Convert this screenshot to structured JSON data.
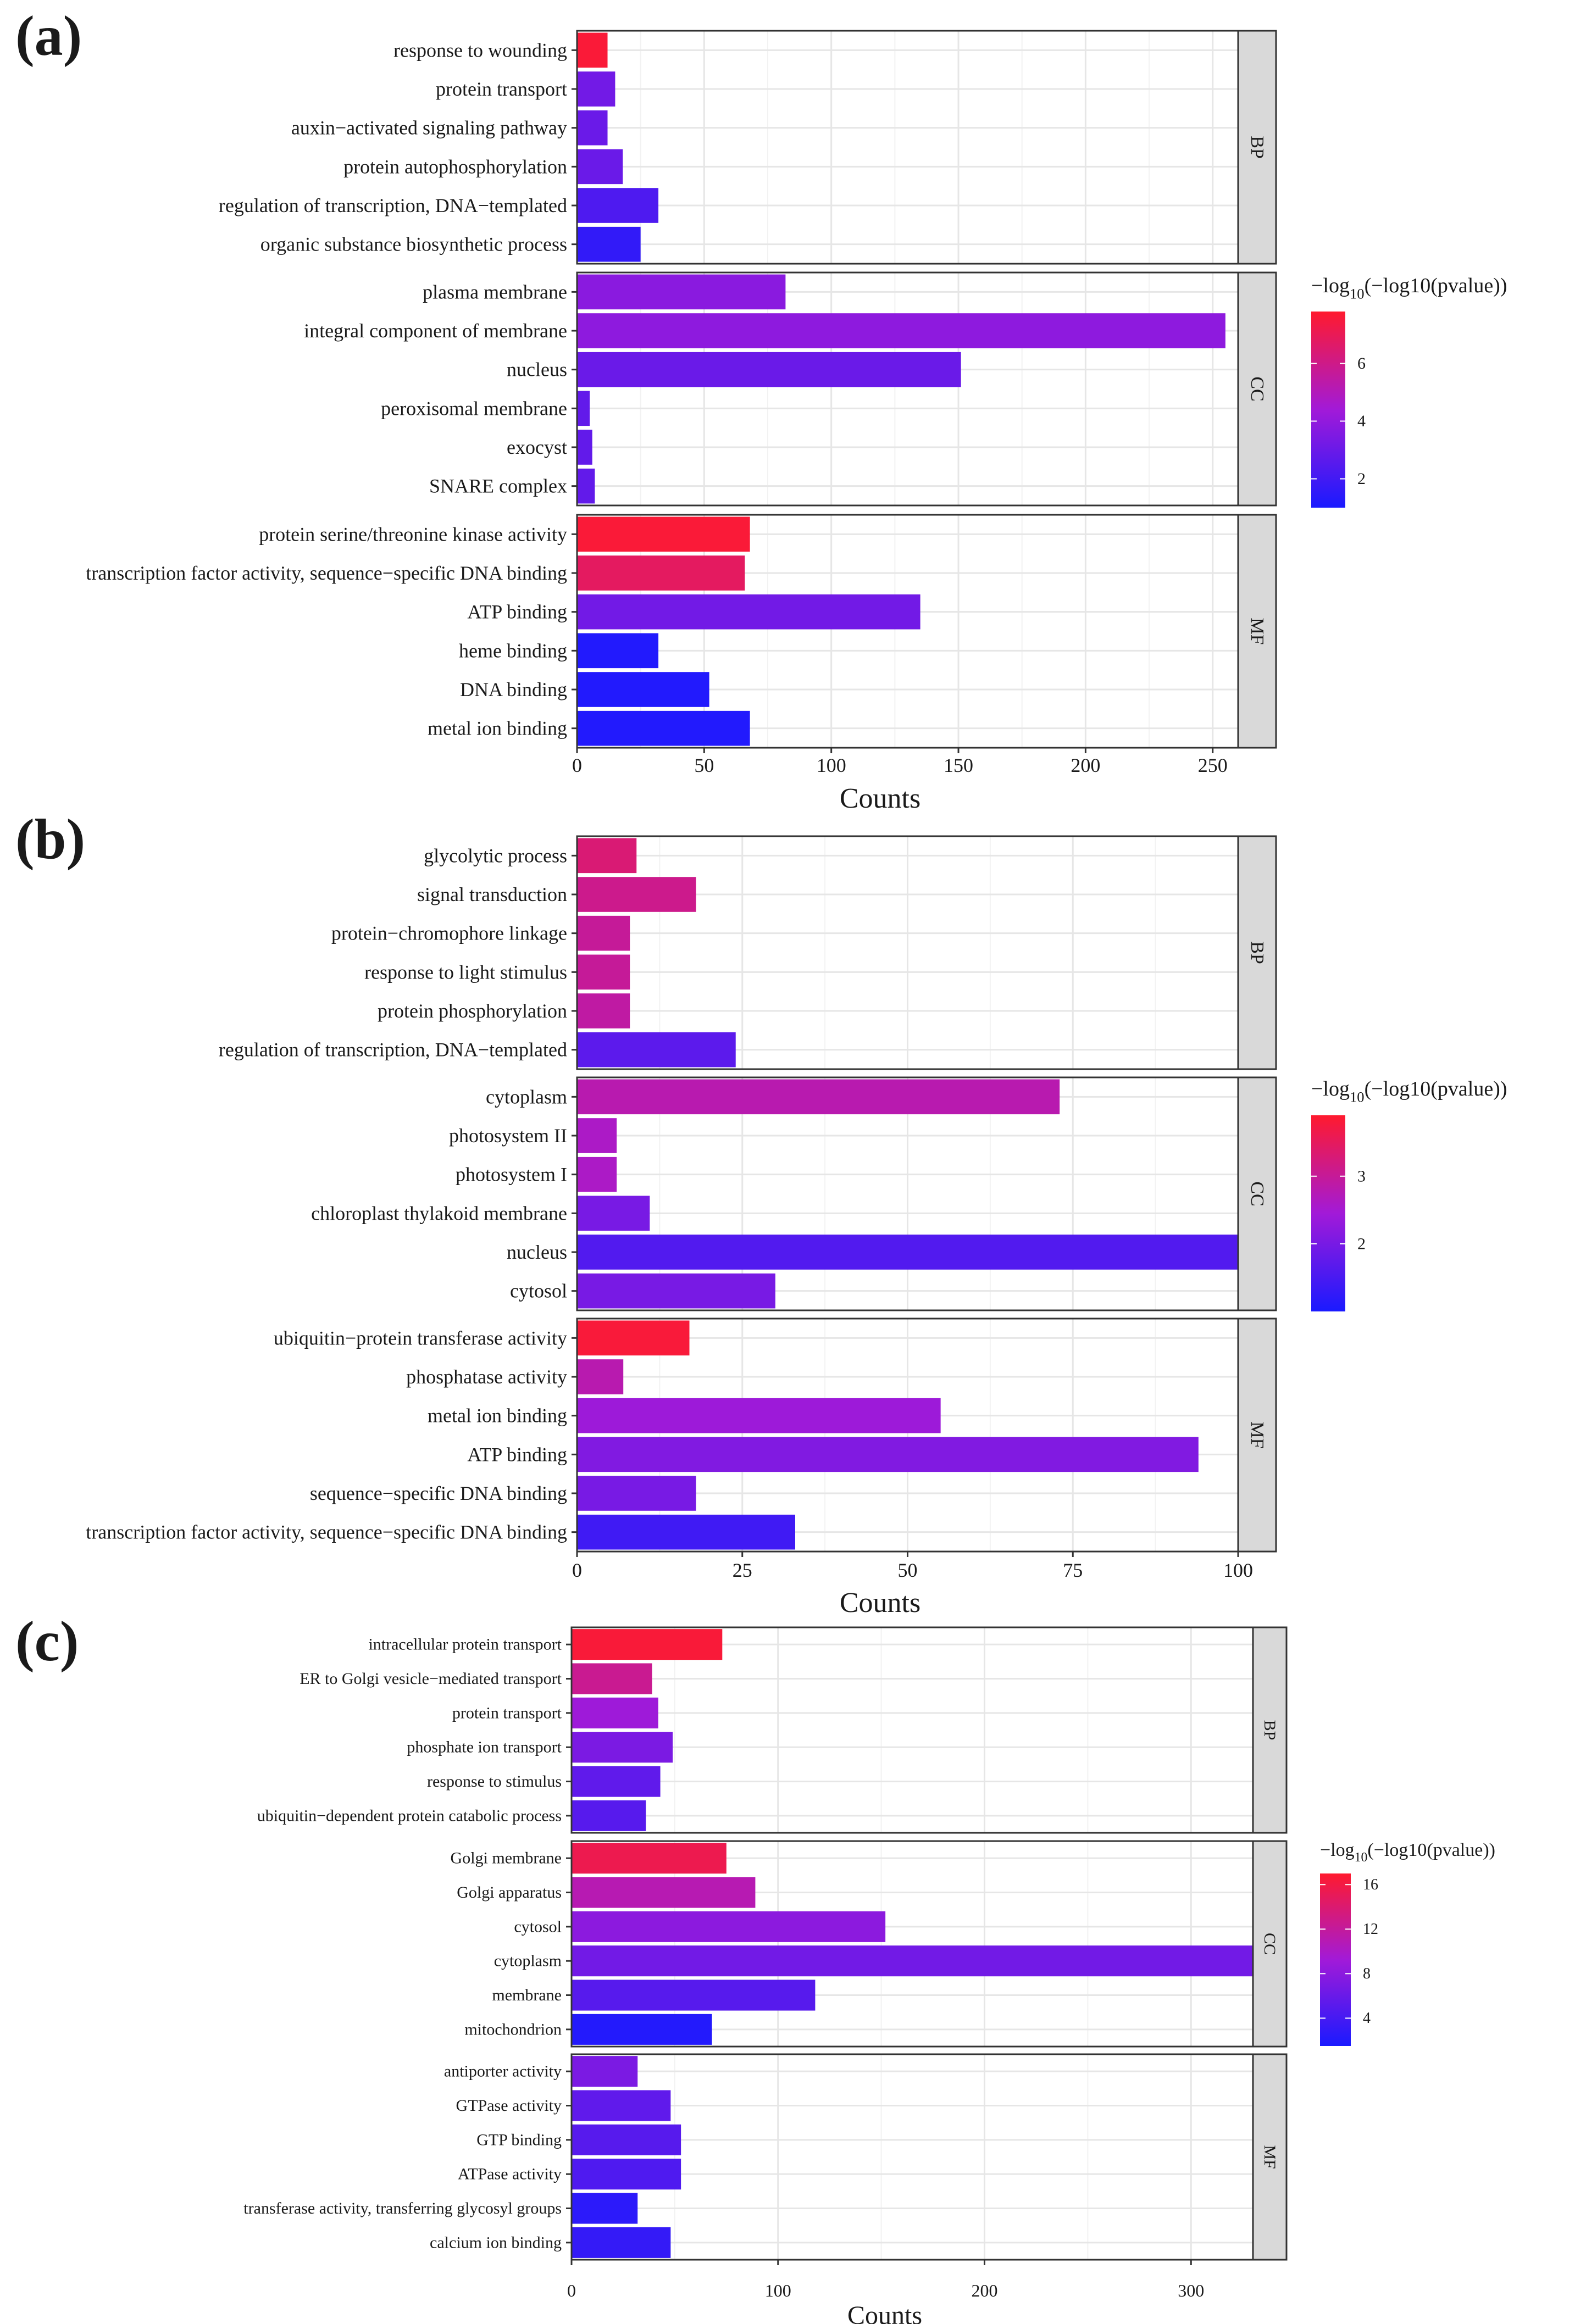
{
  "figure": {
    "axis_title": "Counts"
  },
  "chart_data": [
    {
      "panel": "(a)",
      "type": "bar",
      "orientation": "horizontal",
      "xlabel": "Counts",
      "xlim": [
        0,
        260
      ],
      "xticks": [
        0,
        50,
        100,
        150,
        200,
        250
      ],
      "grid": true,
      "legend": {
        "title_prefix": "−log",
        "title_sub": "10",
        "title_suffix": "(−log10(pvalue))",
        "range": [
          1,
          7.8
        ],
        "ticks": [
          2,
          4,
          6
        ],
        "low_color": "#1a1aff",
        "mid_color": "#a21ad8",
        "high_color": "#ff1a2e",
        "placement": "right"
      },
      "facets": [
        {
          "name": "BP",
          "terms": [
            {
              "term": "response to wounding",
              "count": 12,
              "value": 7.6
            },
            {
              "term": "protein transport",
              "count": 15,
              "value": 3.2
            },
            {
              "term": "auxin−activated signaling pathway",
              "count": 12,
              "value": 3.0
            },
            {
              "term": "protein autophosphorylation",
              "count": 18,
              "value": 3.0
            },
            {
              "term": "regulation of transcription, DNA−templated",
              "count": 32,
              "value": 2.3
            },
            {
              "term": "organic substance biosynthetic process",
              "count": 25,
              "value": 1.6
            }
          ]
        },
        {
          "name": "CC",
          "terms": [
            {
              "term": "plasma membrane",
              "count": 82,
              "value": 3.8
            },
            {
              "term": "integral component of membrane",
              "count": 255,
              "value": 3.9
            },
            {
              "term": "nucleus",
              "count": 151,
              "value": 3.0
            },
            {
              "term": "peroxisomal membrane",
              "count": 5,
              "value": 2.8
            },
            {
              "term": "exocyst",
              "count": 6,
              "value": 2.8
            },
            {
              "term": "SNARE complex",
              "count": 7,
              "value": 2.8
            }
          ]
        },
        {
          "name": "MF",
          "terms": [
            {
              "term": "protein serine/threonine kinase activity",
              "count": 68,
              "value": 7.6
            },
            {
              "term": "transcription factor activity, sequence−specific DNA binding",
              "count": 66,
              "value": 6.8
            },
            {
              "term": "ATP binding",
              "count": 135,
              "value": 3.2
            },
            {
              "term": "heme binding",
              "count": 32,
              "value": 1.2
            },
            {
              "term": "DNA binding",
              "count": 52,
              "value": 1.2
            },
            {
              "term": "metal ion binding",
              "count": 68,
              "value": 1.2
            }
          ]
        }
      ]
    },
    {
      "panel": "(b)",
      "type": "bar",
      "orientation": "horizontal",
      "xlabel": "Counts",
      "xlim": [
        0,
        100
      ],
      "xticks": [
        0,
        25,
        50,
        75,
        100
      ],
      "grid": true,
      "legend": {
        "title_prefix": "−log",
        "title_sub": "10",
        "title_suffix": "(−log10(pvalue))",
        "range": [
          1,
          3.9
        ],
        "ticks": [
          2,
          3
        ],
        "low_color": "#1a1aff",
        "mid_color": "#a21ad8",
        "high_color": "#ff1a2e",
        "placement": "right"
      },
      "facets": [
        {
          "name": "BP",
          "terms": [
            {
              "term": "glycolytic process",
              "count": 9,
              "value": 3.3
            },
            {
              "term": "signal transduction",
              "count": 18,
              "value": 3.1
            },
            {
              "term": "protein−chromophore linkage",
              "count": 8,
              "value": 3.0
            },
            {
              "term": "response to light stimulus",
              "count": 8,
              "value": 3.0
            },
            {
              "term": "protein phosphorylation",
              "count": 8,
              "value": 2.9
            },
            {
              "term": "regulation of transcription, DNA−templated",
              "count": 24,
              "value": 1.7
            }
          ]
        },
        {
          "name": "CC",
          "terms": [
            {
              "term": "cytoplasm",
              "count": 73,
              "value": 2.8
            },
            {
              "term": "photosystem II",
              "count": 6,
              "value": 2.6
            },
            {
              "term": "photosystem I",
              "count": 6,
              "value": 2.6
            },
            {
              "term": "chloroplast thylakoid membrane",
              "count": 11,
              "value": 2.0
            },
            {
              "term": "nucleus",
              "count": 100,
              "value": 1.6
            },
            {
              "term": "cytosol",
              "count": 30,
              "value": 2.0
            }
          ]
        },
        {
          "name": "MF",
          "terms": [
            {
              "term": "ubiquitin−protein transferase activity",
              "count": 17,
              "value": 3.8
            },
            {
              "term": "phosphatase activity",
              "count": 7,
              "value": 2.8
            },
            {
              "term": "metal ion binding",
              "count": 55,
              "value": 2.4
            },
            {
              "term": "ATP binding",
              "count": 94,
              "value": 2.1
            },
            {
              "term": "sequence−specific DNA binding",
              "count": 18,
              "value": 2.0
            },
            {
              "term": "transcription factor activity, sequence−specific DNA binding",
              "count": 33,
              "value": 1.4
            }
          ]
        }
      ]
    },
    {
      "panel": "(c)",
      "type": "bar",
      "orientation": "horizontal",
      "xlabel": "Counts",
      "xlim": [
        0,
        330
      ],
      "xticks": [
        0,
        100,
        200,
        300
      ],
      "grid": true,
      "legend": {
        "title_prefix": "−log",
        "title_sub": "10",
        "title_suffix": "(−log10(pvalue))",
        "range": [
          1.5,
          17
        ],
        "ticks": [
          4,
          8,
          12,
          16
        ],
        "low_color": "#1a1aff",
        "mid_color": "#a21ad8",
        "high_color": "#ff1a2e",
        "placement": "right"
      },
      "facets": [
        {
          "name": "BP",
          "terms": [
            {
              "term": "intracellular protein transport",
              "count": 73,
              "value": 16.5
            },
            {
              "term": "ER to Golgi vesicle−mediated transport",
              "count": 39,
              "value": 12.5
            },
            {
              "term": "protein transport",
              "count": 42,
              "value": 9.0
            },
            {
              "term": "phosphate ion transport",
              "count": 49,
              "value": 7.0
            },
            {
              "term": "response to stimulus",
              "count": 43,
              "value": 5.5
            },
            {
              "term": "ubiquitin−dependent protein catabolic process",
              "count": 36,
              "value": 5.0
            }
          ]
        },
        {
          "name": "CC",
          "terms": [
            {
              "term": "Golgi membrane",
              "count": 75,
              "value": 15.5
            },
            {
              "term": "Golgi apparatus",
              "count": 89,
              "value": 11.0
            },
            {
              "term": "cytosol",
              "count": 152,
              "value": 8.0
            },
            {
              "term": "cytoplasm",
              "count": 330,
              "value": 6.5
            },
            {
              "term": "membrane",
              "count": 118,
              "value": 5.0
            },
            {
              "term": "mitochondrion",
              "count": 68,
              "value": 2.0
            }
          ]
        },
        {
          "name": "MF",
          "terms": [
            {
              "term": "antiporter activity",
              "count": 32,
              "value": 7.0
            },
            {
              "term": "GTPase activity",
              "count": 48,
              "value": 5.5
            },
            {
              "term": "GTP binding",
              "count": 53,
              "value": 5.0
            },
            {
              "term": "ATPase activity",
              "count": 53,
              "value": 4.5
            },
            {
              "term": "transferase activity, transferring glycosyl groups",
              "count": 32,
              "value": 2.5
            },
            {
              "term": "calcium ion binding",
              "count": 48,
              "value": 3.0
            }
          ]
        }
      ]
    }
  ]
}
